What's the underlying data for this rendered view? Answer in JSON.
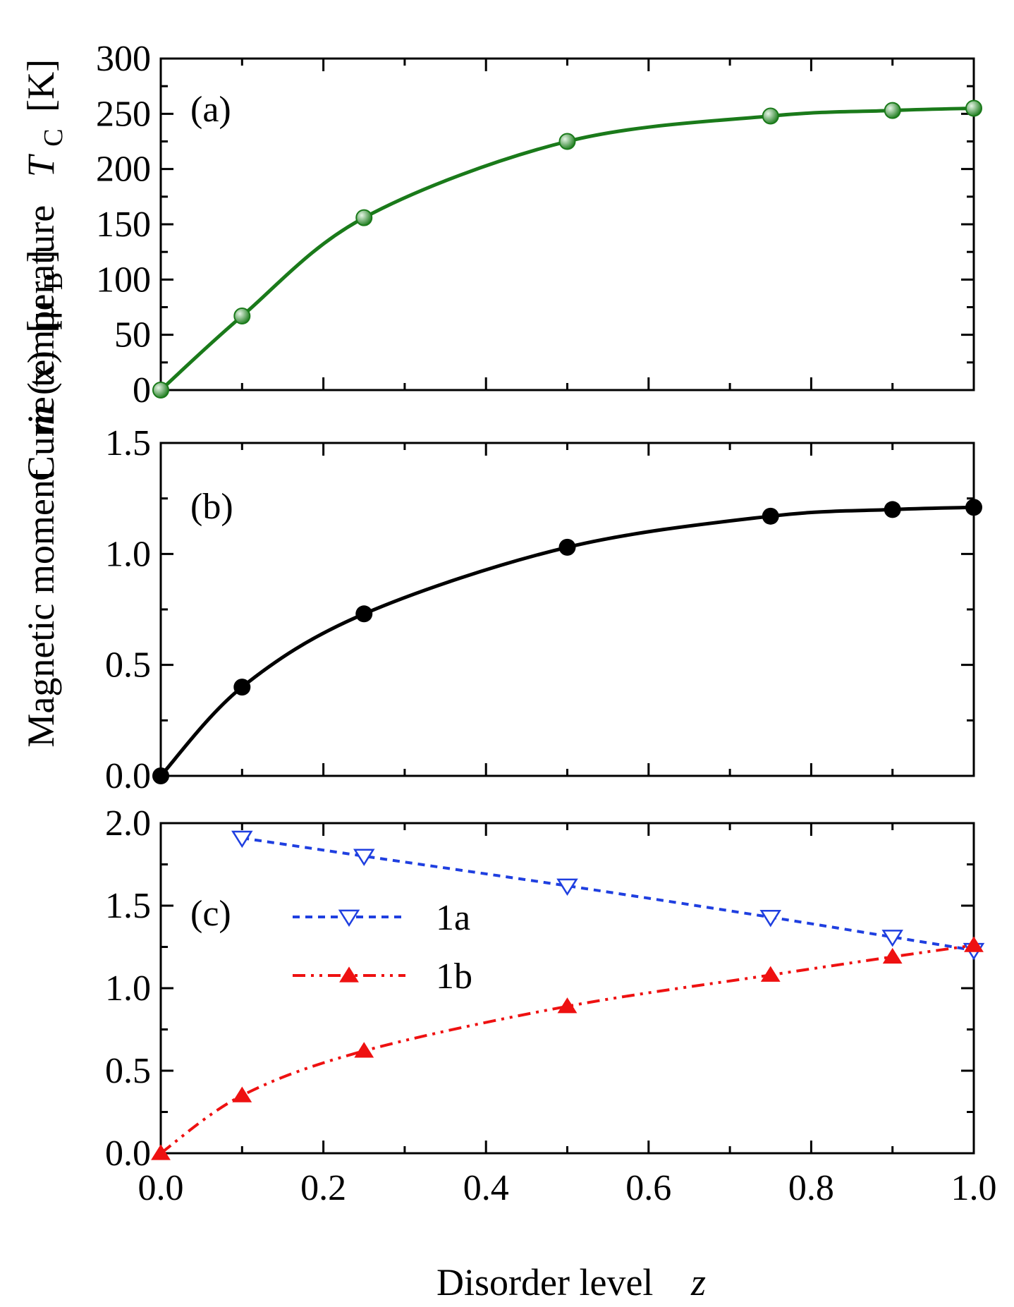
{
  "colors": {
    "curie": "#1a7a1a",
    "curie_marker_light": "#e6f5e6",
    "moment": "#000000",
    "site_1a": "#1f3fe0",
    "site_1b": "#ee1111"
  },
  "labels": {
    "y_left_prefix": "Curie temperature",
    "y_left_symbol": "T",
    "y_left_subscript": "C",
    "y_left_unit": "[K]",
    "y_right_prefix": "Magnetic moment",
    "y_right_m": "m",
    "y_right_x": "(x)",
    "y_right_unit_open": "[μ",
    "y_right_unit_sub": "B",
    "y_right_unit_close": "]",
    "x_label_text": "Disorder level",
    "x_label_symbol": "z"
  },
  "chart_data": [
    {
      "panel": "(a)",
      "type": "line",
      "xlim": [
        0,
        1
      ],
      "ylim": [
        0,
        300
      ],
      "yticks": [
        "0",
        "50",
        "100",
        "150",
        "200",
        "250",
        "300"
      ],
      "series": [
        {
          "x": [
            0,
            0.1,
            0.25,
            0.5,
            0.75,
            0.9,
            1.0
          ],
          "y": [
            0,
            67,
            156,
            225,
            248,
            253,
            255
          ]
        }
      ]
    },
    {
      "panel": "(b)",
      "type": "line",
      "xlim": [
        0,
        1
      ],
      "ylim": [
        0,
        1.5
      ],
      "yticks": [
        "0.0",
        "0.5",
        "1.0",
        "1.5"
      ],
      "series": [
        {
          "x": [
            0,
            0.1,
            0.25,
            0.5,
            0.75,
            0.9,
            1.0
          ],
          "y": [
            0,
            0.4,
            0.73,
            1.03,
            1.17,
            1.2,
            1.21
          ]
        }
      ]
    },
    {
      "panel": "(c)",
      "type": "line",
      "xlim": [
        0,
        1
      ],
      "ylim": [
        0,
        2
      ],
      "yticks": [
        "0.0",
        "0.5",
        "1.0",
        "1.5",
        "2.0"
      ],
      "xticks": [
        "0.0",
        "0.2",
        "0.4",
        "0.6",
        "0.8",
        "1.0"
      ],
      "legend_position": "upper-left",
      "series": [
        {
          "name": "1a",
          "marker": "open-down-triangle",
          "line": "dashed",
          "x": [
            0.1,
            0.25,
            0.5,
            0.75,
            0.9,
            1.0
          ],
          "y": [
            1.91,
            1.8,
            1.62,
            1.43,
            1.31,
            1.23
          ]
        },
        {
          "name": "1b",
          "marker": "filled-up-triangle",
          "line": "dash-dot-dot",
          "x": [
            0,
            0.1,
            0.25,
            0.5,
            0.75,
            0.9,
            1.0
          ],
          "y": [
            0,
            0.35,
            0.62,
            0.89,
            1.08,
            1.19,
            1.26
          ]
        }
      ]
    }
  ]
}
